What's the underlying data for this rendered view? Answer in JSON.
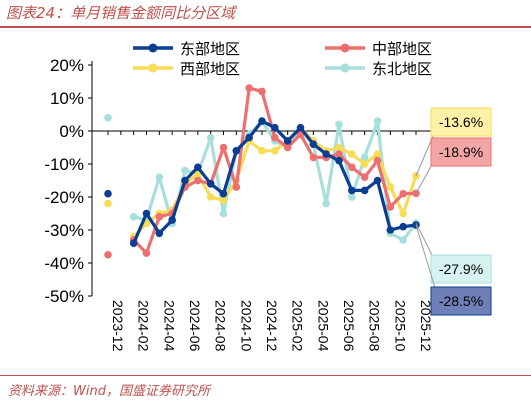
{
  "title": "图表24：单月销售金额同比分区域",
  "source": "资料来源：Wind，国盛证券研究所",
  "chart_data": {
    "type": "line",
    "ylim": [
      -50,
      20
    ],
    "yticks": [
      "20%",
      "10%",
      "0%",
      "-10%",
      "-20%",
      "-30%",
      "-40%",
      "-50%"
    ],
    "ytick_values": [
      20,
      10,
      0,
      -10,
      -20,
      -30,
      -40,
      -50
    ],
    "x": [
      "2023-12",
      "2024-01",
      "2024-02",
      "2024-03",
      "2024-04",
      "2024-05",
      "2024-06",
      "2024-07",
      "2024-08",
      "2024-09",
      "2024-10",
      "2024-11",
      "2024-12",
      "2025-01",
      "2025-02",
      "2025-03",
      "2025-04",
      "2025-05",
      "2025-06",
      "2025-07",
      "2025-08",
      "2025-09",
      "2025-10",
      "2025-11",
      "2025-12"
    ],
    "xticks": [
      "2023-12",
      "2024-02",
      "2024-04",
      "2024-06",
      "2024-08",
      "2024-10",
      "2024-12",
      "2025-02",
      "2025-04",
      "2025-06",
      "2025-08",
      "2025-10",
      "2025-12"
    ],
    "grid": false,
    "legend_position": "top",
    "series": [
      {
        "name": "东部地区",
        "color": "#0b3d91",
        "values": [
          -19,
          null,
          -34,
          -25,
          -31,
          -27,
          -15,
          -11,
          -16,
          -19,
          -6,
          -2,
          3,
          1,
          -3,
          1,
          -4,
          -7,
          -9,
          -18,
          -18,
          -15,
          -30,
          -29,
          -28.5
        ]
      },
      {
        "name": "中部地区",
        "color": "#ee6f6f",
        "values": [
          -37.5,
          null,
          -33,
          -37,
          -26,
          -25,
          -17,
          -15,
          -16,
          -5,
          -17,
          13,
          12,
          -2,
          -5,
          -1,
          -8,
          -8,
          -7,
          -11,
          -14,
          -9,
          -23,
          -19,
          -18.9
        ]
      },
      {
        "name": "西部地区",
        "color": "#f7dc58",
        "values": [
          -22,
          null,
          -32,
          -28,
          -25,
          -24,
          -16,
          -13,
          -20,
          -21,
          -15,
          -3,
          -6,
          -6,
          -3,
          1,
          -3,
          -6,
          -5,
          -7,
          -10,
          -7,
          -17,
          -25,
          -13.6
        ]
      },
      {
        "name": "东北地区",
        "color": "#a6dfdb",
        "values": [
          4,
          null,
          -26,
          -27,
          -14,
          -28,
          -12,
          -13,
          -2,
          -25,
          -6,
          -1,
          3,
          -3,
          -5,
          0,
          -4,
          -22,
          2,
          -20,
          -8,
          3,
          -31,
          -33,
          -27.9
        ]
      }
    ],
    "callouts": [
      {
        "series": "西部地区",
        "label": "-13.6%",
        "fill": "#fff2a8",
        "stroke": "#f7dc58"
      },
      {
        "series": "中部地区",
        "label": "-18.9%",
        "fill": "#f4a5a5",
        "stroke": "#ee6f6f"
      },
      {
        "series": "东北地区",
        "label": "-27.9%",
        "fill": "#d6f3f1",
        "stroke": "#a6dfdb"
      },
      {
        "series": "东部地区",
        "label": "-28.5%",
        "fill": "#6f7fb8",
        "stroke": "#0b3d91"
      }
    ]
  }
}
